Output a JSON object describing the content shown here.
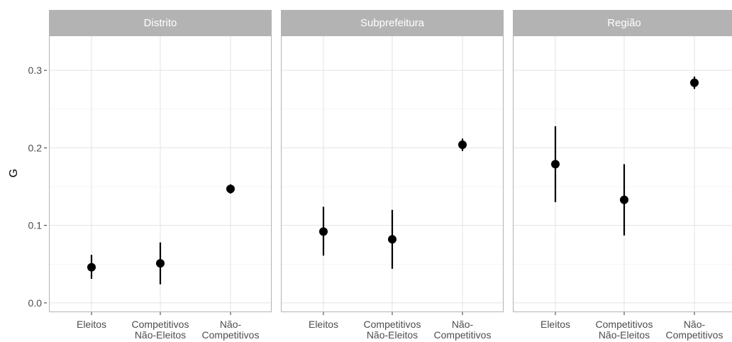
{
  "chart_data": {
    "type": "scatter",
    "ylabel": "G",
    "xlabel": "",
    "ylim": [
      -0.012,
      0.345
    ],
    "yticks": [
      "0.0",
      "0.1",
      "0.2",
      "0.3"
    ],
    "categories": [
      "Eleitos",
      "Competitivos Não-Eleitos",
      "Não-Competitivos"
    ],
    "category_labels": [
      [
        "Eleitos"
      ],
      [
        "Competitivos",
        "Não-Eleitos"
      ],
      [
        "Não-",
        "Competitivos"
      ]
    ],
    "grid": true,
    "panels": [
      {
        "title": "Distrito",
        "points": [
          {
            "category": "Eleitos",
            "y": 0.046,
            "ymin": 0.031,
            "ymax": 0.062
          },
          {
            "category": "Competitivos Não-Eleitos",
            "y": 0.051,
            "ymin": 0.024,
            "ymax": 0.078
          },
          {
            "category": "Não-Competitivos",
            "y": 0.147,
            "ymin": 0.141,
            "ymax": 0.153
          }
        ]
      },
      {
        "title": "Subprefeitura",
        "points": [
          {
            "category": "Eleitos",
            "y": 0.092,
            "ymin": 0.061,
            "ymax": 0.124
          },
          {
            "category": "Competitivos Não-Eleitos",
            "y": 0.082,
            "ymin": 0.044,
            "ymax": 0.12
          },
          {
            "category": "Não-Competitivos",
            "y": 0.204,
            "ymin": 0.196,
            "ymax": 0.212
          }
        ]
      },
      {
        "title": "Região",
        "points": [
          {
            "category": "Eleitos",
            "y": 0.179,
            "ymin": 0.13,
            "ymax": 0.228
          },
          {
            "category": "Competitivos Não-Eleitos",
            "y": 0.133,
            "ymin": 0.087,
            "ymax": 0.179
          },
          {
            "category": "Não-Competitivos",
            "y": 0.284,
            "ymin": 0.276,
            "ymax": 0.292
          }
        ]
      }
    ]
  }
}
